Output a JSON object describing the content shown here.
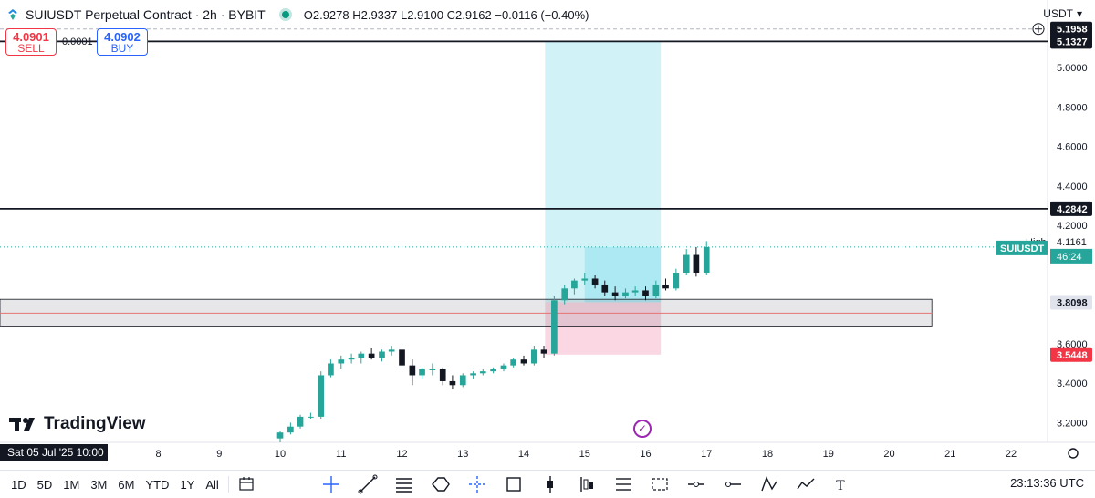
{
  "header": {
    "title": "SUIUSDT Perpetual Contract · 2h · BYBIT",
    "ohlc": "O2.9278 H2.9337 L2.9100 C2.9162 −0.0116 (−0.40%)"
  },
  "trade": {
    "sell_price": "4.0901",
    "sell_label": "SELL",
    "spread": "0.0001",
    "buy_price": "4.0902",
    "buy_label": "BUY"
  },
  "currency": "USDT",
  "branding": "TradingView",
  "date_badge": "Sat 05 Jul '25   10:00",
  "timeframes": [
    "1D",
    "5D",
    "1M",
    "3M",
    "6M",
    "YTD",
    "1Y",
    "All"
  ],
  "clock": "23:13:36 UTC",
  "colors": {
    "up": "#26a69a",
    "down": "#131722",
    "long_profit": "#b2ebf2",
    "long_stop": "#f8bbd0",
    "price_tag": "#26a69a"
  },
  "tool_icons": [
    "cursor-icon",
    "trend-line-icon",
    "fib-icon",
    "shapes-icon",
    "crosshair-icon",
    "rectangle-icon",
    "range-icon",
    "long-position-icon",
    "projection-icon",
    "channel-icon",
    "horizontal-line-icon",
    "ray-icon",
    "pattern-icon",
    "path-icon",
    "text-icon"
  ],
  "chart_data": {
    "type": "candlestick",
    "x_ticks": [
      "8",
      "9",
      "10",
      "11",
      "12",
      "13",
      "14",
      "15",
      "16",
      "17",
      "18",
      "19",
      "20",
      "21",
      "22"
    ],
    "y_ticks": [
      "5.0000",
      "4.8000",
      "4.6000",
      "4.4000",
      "4.2000",
      "3.6000",
      "3.4000",
      "3.2000"
    ],
    "ylim": [
      3.1,
      5.25
    ],
    "xlim": [
      5.4,
      22.6
    ],
    "horizontal_lines": [
      5.1327,
      4.2842
    ],
    "price_labels": [
      {
        "value": 5.1958,
        "text": "5.1958",
        "style": "dark"
      },
      {
        "value": 5.1327,
        "text": "5.1327",
        "style": "dark"
      },
      {
        "value": 4.2842,
        "text": "4.2842",
        "style": "dark"
      },
      {
        "value": 4.1161,
        "text": "4.1161",
        "style": "high"
      },
      {
        "value": 3.8098,
        "text": "3.8098",
        "style": "grey"
      },
      {
        "value": 3.5448,
        "text": "3.5448",
        "style": "red"
      }
    ],
    "current_price_label": {
      "value": 4.09,
      "symbol": "SUIUSDT",
      "countdown": "46:24",
      "high_label": "High"
    },
    "zone": {
      "x_start": 5.4,
      "x_end": 20.7,
      "y_top": 3.825,
      "y_bottom": 3.69,
      "mid_line": 3.755
    },
    "long_position": {
      "x_start": 14.35,
      "x_end": 16.25,
      "entry": 3.8098,
      "target": 5.1327,
      "stop": 3.5448
    },
    "candles": [
      [
        10.0,
        3.12,
        3.16,
        3.1,
        3.15
      ],
      [
        10.17,
        3.15,
        3.2,
        3.14,
        3.18
      ],
      [
        10.33,
        3.18,
        3.24,
        3.17,
        3.23
      ],
      [
        10.5,
        3.23,
        3.25,
        3.22,
        3.23
      ],
      [
        10.67,
        3.23,
        3.46,
        3.22,
        3.44
      ],
      [
        10.83,
        3.44,
        3.52,
        3.43,
        3.5
      ],
      [
        11.0,
        3.5,
        3.54,
        3.47,
        3.52
      ],
      [
        11.17,
        3.52,
        3.55,
        3.5,
        3.53
      ],
      [
        11.33,
        3.53,
        3.56,
        3.5,
        3.55
      ],
      [
        11.5,
        3.55,
        3.58,
        3.52,
        3.53
      ],
      [
        11.67,
        3.53,
        3.57,
        3.51,
        3.56
      ],
      [
        11.83,
        3.56,
        3.59,
        3.54,
        3.57
      ],
      [
        12.0,
        3.57,
        3.58,
        3.47,
        3.49
      ],
      [
        12.17,
        3.49,
        3.52,
        3.39,
        3.44
      ],
      [
        12.33,
        3.44,
        3.48,
        3.42,
        3.47
      ],
      [
        12.5,
        3.47,
        3.5,
        3.44,
        3.47
      ],
      [
        12.67,
        3.47,
        3.48,
        3.39,
        3.41
      ],
      [
        12.83,
        3.41,
        3.44,
        3.37,
        3.39
      ],
      [
        13.0,
        3.39,
        3.45,
        3.38,
        3.44
      ],
      [
        13.17,
        3.44,
        3.46,
        3.42,
        3.45
      ],
      [
        13.33,
        3.45,
        3.47,
        3.44,
        3.46
      ],
      [
        13.5,
        3.46,
        3.48,
        3.45,
        3.47
      ],
      [
        13.67,
        3.47,
        3.5,
        3.46,
        3.49
      ],
      [
        13.83,
        3.49,
        3.53,
        3.48,
        3.52
      ],
      [
        14.0,
        3.52,
        3.54,
        3.49,
        3.5
      ],
      [
        14.17,
        3.5,
        3.59,
        3.49,
        3.57
      ],
      [
        14.33,
        3.57,
        3.59,
        3.53,
        3.55
      ],
      [
        14.5,
        3.55,
        3.84,
        3.54,
        3.82
      ],
      [
        14.67,
        3.82,
        3.9,
        3.8,
        3.88
      ],
      [
        14.83,
        3.88,
        3.93,
        3.85,
        3.92
      ],
      [
        15.0,
        3.92,
        3.96,
        3.9,
        3.93
      ],
      [
        15.17,
        3.93,
        3.95,
        3.88,
        3.9
      ],
      [
        15.33,
        3.9,
        3.92,
        3.84,
        3.86
      ],
      [
        15.5,
        3.86,
        3.89,
        3.82,
        3.84
      ],
      [
        15.67,
        3.84,
        3.88,
        3.83,
        3.86
      ],
      [
        15.83,
        3.86,
        3.89,
        3.84,
        3.87
      ],
      [
        16.0,
        3.87,
        3.89,
        3.82,
        3.84
      ],
      [
        16.17,
        3.84,
        3.92,
        3.83,
        3.9
      ],
      [
        16.33,
        3.9,
        3.93,
        3.87,
        3.88
      ],
      [
        16.5,
        3.88,
        3.98,
        3.87,
        3.96
      ],
      [
        16.67,
        3.96,
        4.08,
        3.95,
        4.05
      ],
      [
        16.83,
        4.05,
        4.09,
        3.94,
        3.96
      ],
      [
        17.0,
        3.96,
        4.12,
        3.95,
        4.09
      ]
    ]
  }
}
